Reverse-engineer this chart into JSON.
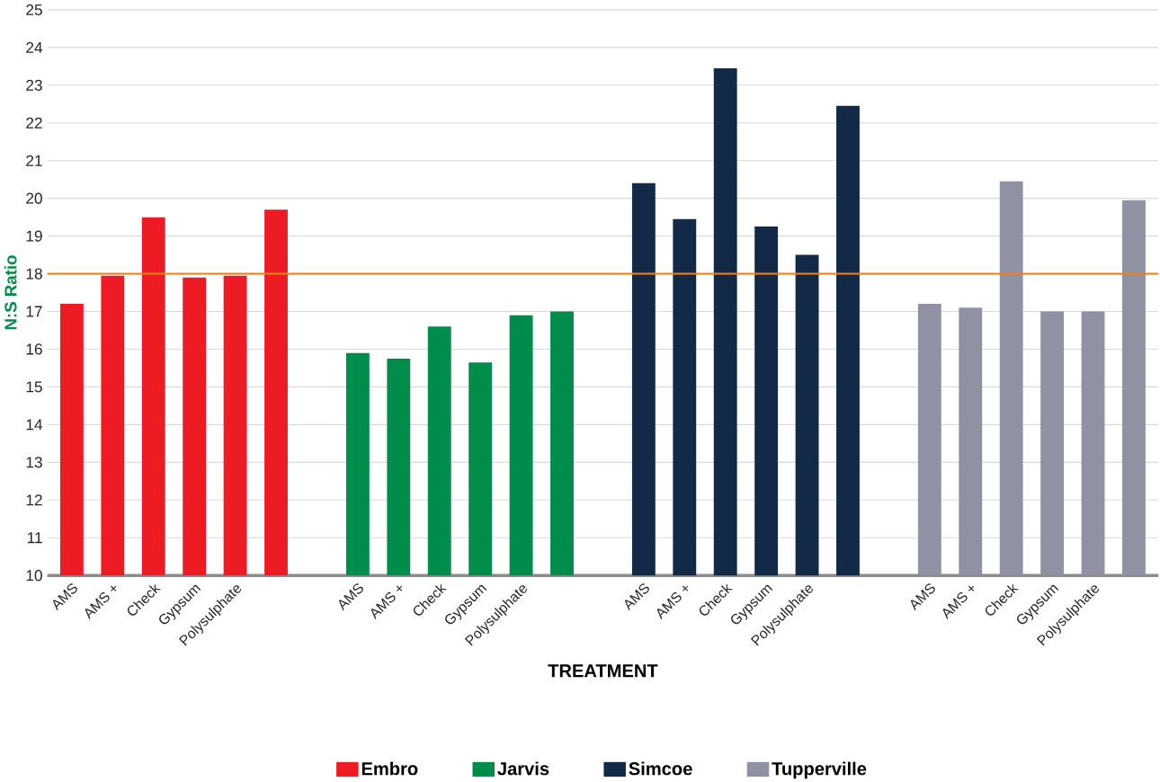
{
  "chart_data": {
    "type": "bar",
    "xlabel": "TREATMENT",
    "ylabel": "N:S Ratio",
    "categories": [
      "AMS",
      "AMS +",
      "Check",
      "Gypsum",
      "Polysulphate",
      null,
      null,
      "AMS",
      "AMS +",
      "Check",
      "Gypsum",
      "Polysulphate",
      null,
      null,
      "AMS",
      "AMS +",
      "Check",
      "Gypsum",
      "Polysulphate",
      null,
      null,
      "AMS",
      "AMS +",
      "Check",
      "Gypsum",
      "Polysulphate",
      null
    ],
    "series": [
      {
        "name": "Embro",
        "color": "#ed1c24",
        "values": [
          17.2,
          17.95,
          19.5,
          17.9,
          17.95,
          19.7,
          null,
          null,
          null,
          null,
          null,
          null,
          null,
          null,
          null,
          null,
          null,
          null,
          null,
          null,
          null,
          null,
          null,
          null,
          null,
          null,
          null
        ]
      },
      {
        "name": "Jarvis",
        "color": "#008c4a",
        "values": [
          null,
          null,
          null,
          null,
          null,
          null,
          null,
          15.9,
          15.75,
          16.6,
          15.65,
          16.9,
          17.0,
          null,
          null,
          null,
          null,
          null,
          null,
          null,
          null,
          null,
          null,
          null,
          null,
          null,
          null
        ]
      },
      {
        "name": "Simcoe",
        "color": "#122a47",
        "values": [
          null,
          null,
          null,
          null,
          null,
          null,
          null,
          null,
          null,
          null,
          null,
          null,
          null,
          null,
          20.4,
          19.45,
          23.45,
          19.25,
          18.5,
          22.45,
          null,
          null,
          null,
          null,
          null,
          null,
          null
        ]
      },
      {
        "name": "Tupperville",
        "color": "#9092a3",
        "values": [
          null,
          null,
          null,
          null,
          null,
          null,
          null,
          null,
          null,
          null,
          null,
          null,
          null,
          null,
          null,
          null,
          null,
          null,
          null,
          null,
          null,
          17.2,
          17.1,
          20.45,
          17.0,
          17.0,
          19.95
        ]
      }
    ],
    "ylim": [
      10,
      25
    ],
    "yticks": [
      10,
      11,
      12,
      13,
      14,
      15,
      16,
      17,
      18,
      19,
      20,
      21,
      22,
      23,
      24,
      25
    ],
    "grid": "y",
    "legend": "bottom",
    "ref_lines": [
      {
        "axis": "y",
        "value": 18,
        "color": "#f07f1e"
      }
    ]
  }
}
